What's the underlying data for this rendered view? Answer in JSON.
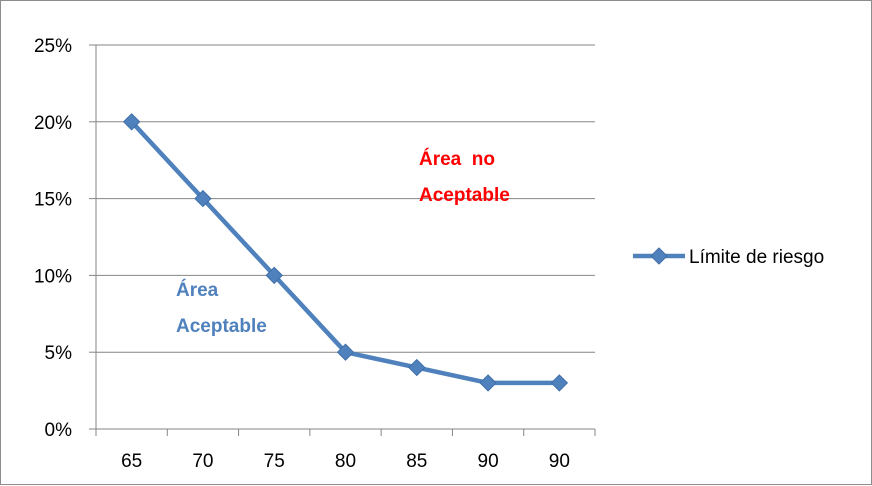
{
  "chart_data": {
    "type": "line",
    "categories": [
      "65",
      "70",
      "75",
      "80",
      "85",
      "90",
      "90"
    ],
    "series": [
      {
        "name": "Límite de riesgo",
        "values": [
          0.2,
          0.15,
          0.1,
          0.05,
          0.04,
          0.03,
          0.03
        ],
        "color": "#4f81bd"
      }
    ],
    "y_ticks": [
      "0%",
      "5%",
      "10%",
      "15%",
      "20%",
      "25%"
    ],
    "ylim": [
      0,
      0.25
    ],
    "grid": true,
    "legend_position": "right",
    "annotations": [
      {
        "lines": [
          "Área  no",
          "Aceptable"
        ],
        "color": "#ff0000"
      },
      {
        "lines": [
          "Área",
          "Aceptable"
        ],
        "color": "#4f81bd"
      }
    ]
  }
}
